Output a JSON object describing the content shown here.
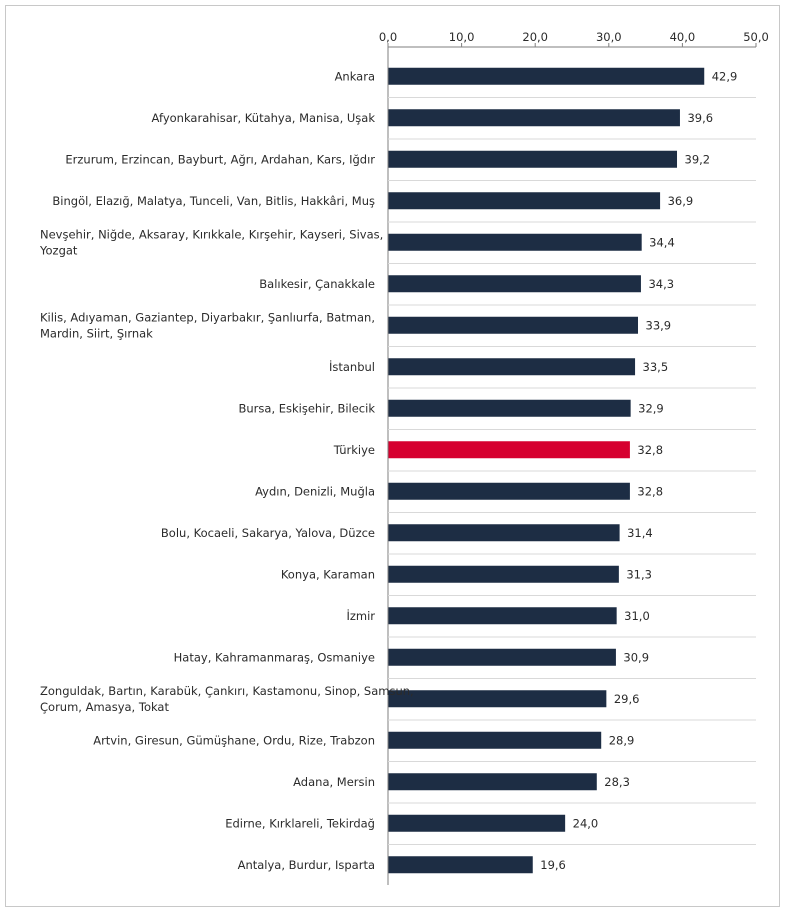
{
  "chart_data": {
    "type": "bar",
    "orientation": "horizontal",
    "categories": [
      "Ankara",
      "Afyonkarahisar, Kütahya, Manisa, Uşak",
      "Erzurum, Erzincan, Bayburt, Ağrı, Ardahan, Kars, Iğdır",
      "Bingöl, Elazığ, Malatya, Tunceli, Van, Bitlis, Hakkâri, Muş",
      "Nevşehir, Niğde, Aksaray, Kırıkkale, Kırşehir, Kayseri, Sivas, Yozgat",
      "Balıkesir, Çanakkale",
      "Kilis, Adıyaman, Gaziantep, Diyarbakır, Şanlıurfa, Batman, Mardin, Siirt, Şırnak",
      "İstanbul",
      "Bursa, Eskişehir, Bilecik",
      "Türkiye",
      "Aydın, Denizli, Muğla",
      "Bolu, Kocaeli, Sakarya, Yalova, Düzce",
      "Konya, Karaman",
      "İzmir",
      "Hatay, Kahramanmaraş, Osmaniye",
      "Zonguldak, Bartın, Karabük, Çankırı, Kastamonu, Sinop, Samsun, Çorum, Amasya, Tokat",
      "Artvin, Giresun, Gümüşhane, Ordu, Rize, Trabzon",
      "Adana, Mersin",
      "Edirne, Kırklareli, Tekirdağ",
      "Antalya, Burdur, Isparta"
    ],
    "label_lines": [
      [
        "Ankara"
      ],
      [
        "Afyonkarahisar, Kütahya, Manisa, Uşak"
      ],
      [
        "Erzurum, Erzincan, Bayburt, Ağrı, Ardahan, Kars, Iğdır"
      ],
      [
        "Bingöl, Elazığ, Malatya, Tunceli, Van, Bitlis, Hakkâri, Muş"
      ],
      [
        "Nevşehir, Niğde, Aksaray, Kırıkkale, Kırşehir, Kayseri, Sivas,",
        "Yozgat"
      ],
      [
        "Balıkesir, Çanakkale"
      ],
      [
        "Kilis, Adıyaman, Gaziantep, Diyarbakır, Şanlıurfa, Batman,",
        "Mardin, Siirt, Şırnak"
      ],
      [
        "İstanbul"
      ],
      [
        "Bursa, Eskişehir, Bilecik"
      ],
      [
        "Türkiye"
      ],
      [
        "Aydın, Denizli, Muğla"
      ],
      [
        "Bolu, Kocaeli, Sakarya, Yalova, Düzce"
      ],
      [
        "Konya, Karaman"
      ],
      [
        "İzmir"
      ],
      [
        "Hatay, Kahramanmaraş, Osmaniye"
      ],
      [
        "Zonguldak, Bartın, Karabük, Çankırı, Kastamonu, Sinop, Samsun,",
        "Çorum, Amasya, Tokat"
      ],
      [
        "Artvin, Giresun, Gümüşhane, Ordu, Rize, Trabzon"
      ],
      [
        "Adana, Mersin"
      ],
      [
        "Edirne, Kırklareli, Tekirdağ"
      ],
      [
        "Antalya, Burdur, Isparta"
      ]
    ],
    "values": [
      42.9,
      39.6,
      39.2,
      36.9,
      34.4,
      34.3,
      33.9,
      33.5,
      32.9,
      32.8,
      32.8,
      31.4,
      31.3,
      31.0,
      30.9,
      29.6,
      28.9,
      28.3,
      24.0,
      19.6
    ],
    "value_labels": [
      "42,9",
      "39,6",
      "39,2",
      "36,9",
      "34,4",
      "34,3",
      "33,9",
      "33,5",
      "32,9",
      "32,8",
      "32,8",
      "31,4",
      "31,3",
      "31,0",
      "30,9",
      "29,6",
      "28,9",
      "28,3",
      "24,0",
      "19,6"
    ],
    "highlight_index": 9,
    "xlim": [
      0,
      50
    ],
    "ticks": [
      0,
      10,
      20,
      30,
      40,
      50
    ],
    "tick_labels": [
      "0,0",
      "10,0",
      "20,0",
      "30,0",
      "40,0",
      "50,0"
    ],
    "axis_position": "top",
    "grid": false,
    "title": "",
    "xlabel": "",
    "ylabel": "",
    "colors": {
      "bar": "#1d2d44",
      "highlight": "#d6002f",
      "separator": "#d9d9d9",
      "axis": "#7f7f7f"
    }
  }
}
